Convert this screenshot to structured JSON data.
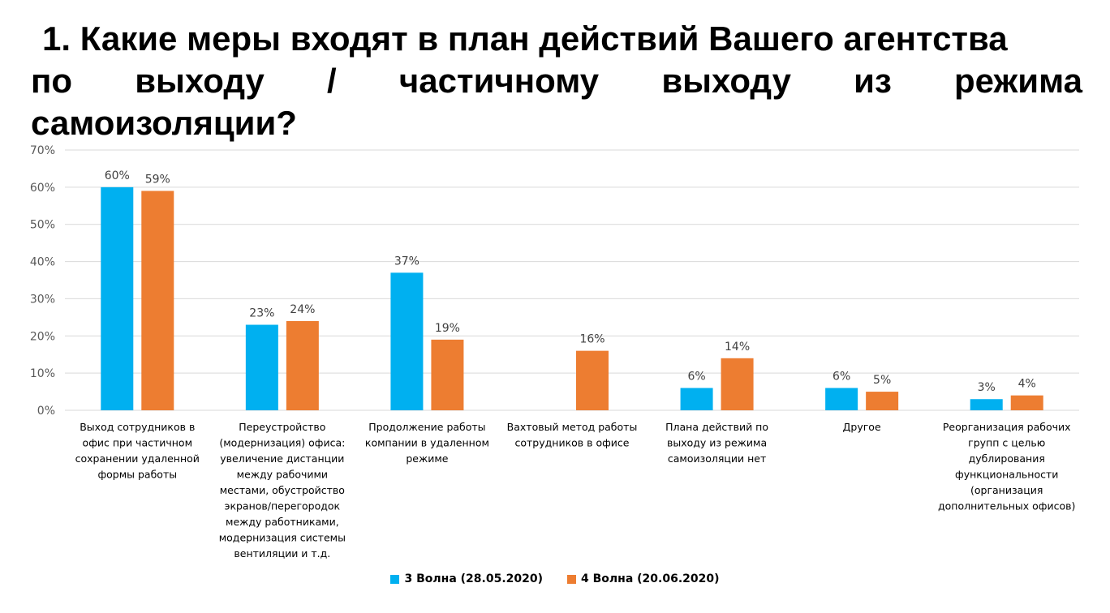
{
  "title": {
    "line1": "1. Какие меры входят в план действий Вашего агентства",
    "line2_words": [
      "по",
      "выходу",
      "/",
      "частичному",
      "выходу",
      "из",
      "режима"
    ],
    "line3": "самоизоляции?"
  },
  "colors": {
    "series1": "#00B0F0",
    "series2": "#ED7D31",
    "grid": "#D9D9D9",
    "axis_text": "#595959",
    "label_text": "#404040"
  },
  "chart_data": {
    "type": "bar",
    "ylim": [
      0,
      70
    ],
    "yticks": [
      "0%",
      "10%",
      "20%",
      "30%",
      "40%",
      "50%",
      "60%",
      "70%"
    ],
    "grid": true,
    "legend_position": "bottom",
    "categories": [
      [
        "Выход сотрудников в",
        "офис при частичном",
        "сохранении удаленной",
        "формы работы"
      ],
      [
        "Переустройство",
        "(модернизация) офиса:",
        "увеличение дистанции",
        "между рабочими",
        "местами, обустройство",
        "экранов/перегородок",
        "между работниками,",
        "модернизация системы",
        "вентиляции и т.д."
      ],
      [
        "Продолжение работы",
        "компании в удаленном",
        "режиме"
      ],
      [
        "Вахтовый метод работы",
        "сотрудников в офисе"
      ],
      [
        "Плана действий по",
        "выходу из режима",
        "самоизоляции нет"
      ],
      [
        "Другое"
      ],
      [
        "Реорганизация рабочих",
        "групп с целью",
        "дублирования",
        "функциональности",
        "(организация",
        "дополнительных офисов)"
      ]
    ],
    "series": [
      {
        "name": "3 Волна (28.05.2020)",
        "values": [
          60,
          23,
          37,
          null,
          6,
          6,
          3
        ],
        "labels": [
          "60%",
          "23%",
          "37%",
          "",
          "6%",
          "6%",
          "3%"
        ]
      },
      {
        "name": "4 Волна (20.06.2020)",
        "values": [
          59,
          24,
          19,
          16,
          14,
          5,
          4
        ],
        "labels": [
          "59%",
          "24%",
          "19%",
          "16%",
          "14%",
          "5%",
          "4%"
        ]
      }
    ]
  }
}
